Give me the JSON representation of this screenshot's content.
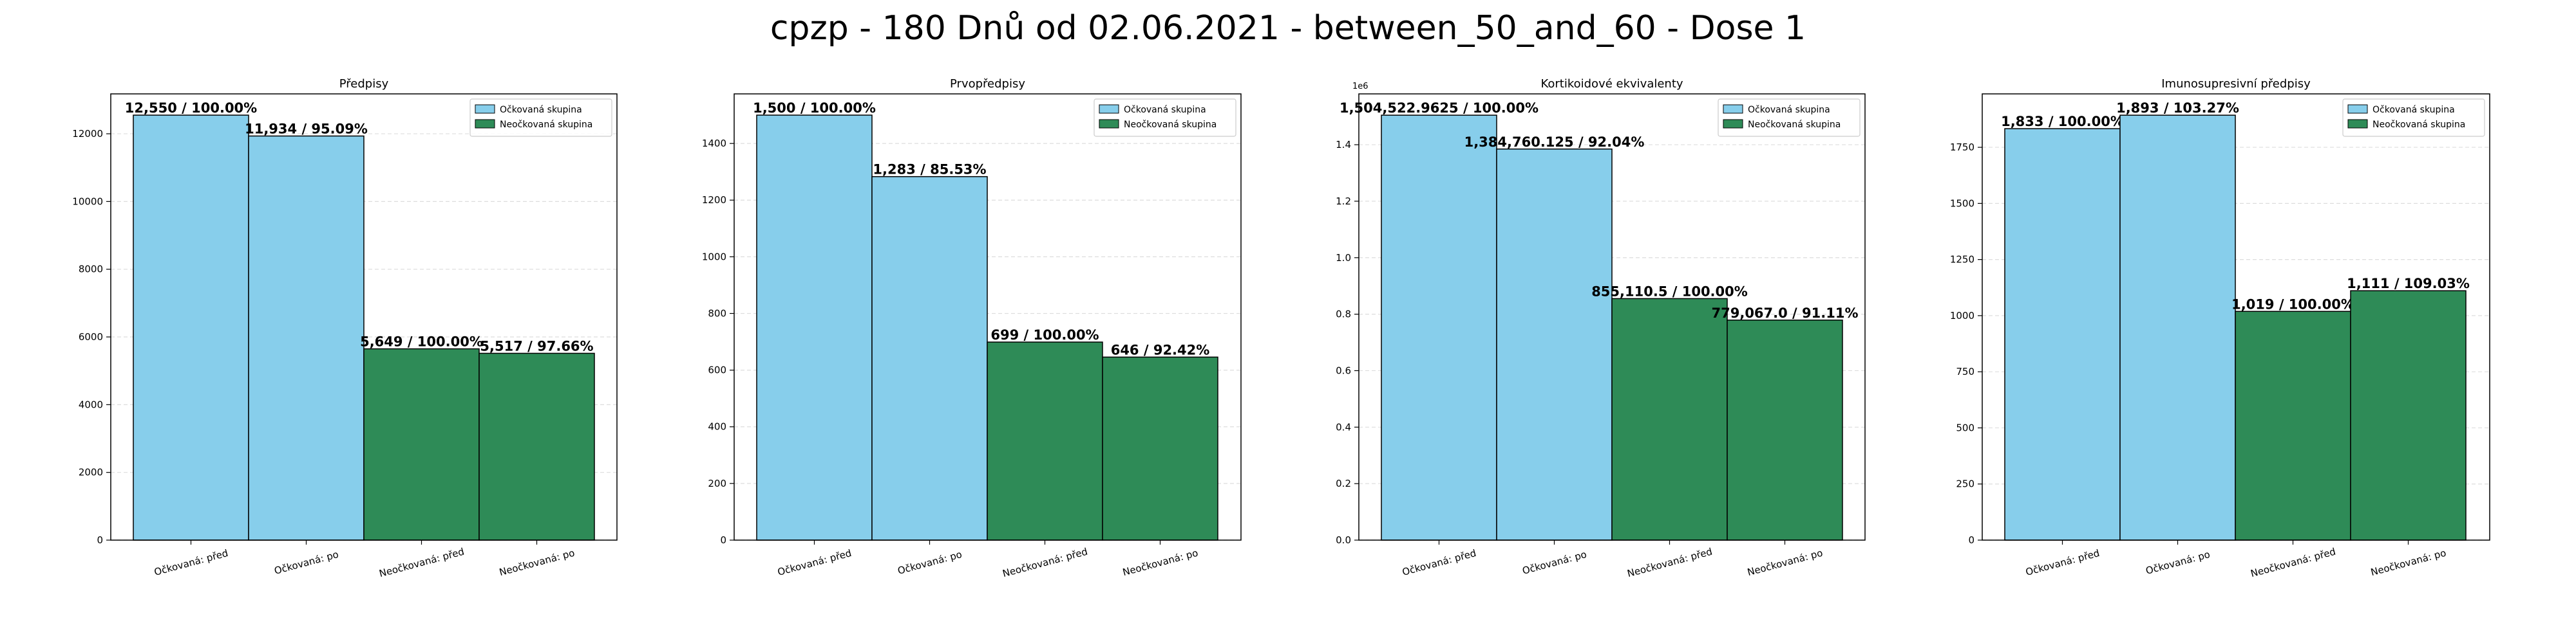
{
  "page": {
    "title": "cpzp - 180 Dnů od 02.06.2021 - between_50_and_60 - Dose 1"
  },
  "colors": {
    "vaccinated": "#87CEEB",
    "unvaccinated": "#2E8B57",
    "frame": "#000000",
    "grid": "#dddddd"
  },
  "chart_data": [
    {
      "type": "bar",
      "title": "Předpisy",
      "categories": [
        "Očkovaná: před",
        "Očkovaná: po",
        "Neočkovaná: před",
        "Neočkovaná: po"
      ],
      "values": [
        12550,
        11934,
        5649,
        5517
      ],
      "bar_labels": [
        "12,550 / 100.00%",
        "11,934 / 95.09%",
        "5,649 / 100.00%",
        "5,517 / 97.66%"
      ],
      "bar_groups": [
        "vaccinated",
        "vaccinated",
        "unvaccinated",
        "unvaccinated"
      ],
      "legend": [
        "Očkovaná skupina",
        "Neočkovaná skupina"
      ],
      "legend_position": "top-right",
      "ylim": [
        0,
        13178
      ],
      "yticks": [
        0,
        2000,
        4000,
        6000,
        8000,
        10000,
        12000
      ],
      "ytick_labels": [
        "0",
        "2000",
        "4000",
        "6000",
        "8000",
        "10000",
        "12000"
      ],
      "grid": true
    },
    {
      "type": "bar",
      "title": "Prvopředpisy",
      "categories": [
        "Očkovaná: před",
        "Očkovaná: po",
        "Neočkovaná: před",
        "Neočkovaná: po"
      ],
      "values": [
        1500,
        1283,
        699,
        646
      ],
      "bar_labels": [
        "1,500 / 100.00%",
        "1,283 / 85.53%",
        "699 / 100.00%",
        "646 / 92.42%"
      ],
      "bar_groups": [
        "vaccinated",
        "vaccinated",
        "unvaccinated",
        "unvaccinated"
      ],
      "legend": [
        "Očkovaná skupina",
        "Neočkovaná skupina"
      ],
      "legend_position": "top-right",
      "ylim": [
        0,
        1575
      ],
      "yticks": [
        0,
        200,
        400,
        600,
        800,
        1000,
        1200,
        1400
      ],
      "ytick_labels": [
        "0",
        "200",
        "400",
        "600",
        "800",
        "1000",
        "1200",
        "1400"
      ],
      "grid": true
    },
    {
      "type": "bar",
      "title": "Kortikoidové ekvivalenty",
      "categories": [
        "Očkovaná: před",
        "Očkovaná: po",
        "Neočkovaná: před",
        "Neočkovaná: po"
      ],
      "values": [
        1504522.9625,
        1384760.125,
        855110.5,
        779067.0
      ],
      "bar_labels": [
        "1,504,522.9625 / 100.00%",
        "1,384,760.125 / 92.04%",
        "855,110.5 / 100.00%",
        "779,067.0 / 91.11%"
      ],
      "bar_groups": [
        "vaccinated",
        "vaccinated",
        "unvaccinated",
        "unvaccinated"
      ],
      "legend": [
        "Očkovaná skupina",
        "Neočkovaná skupina"
      ],
      "legend_position": "top-right",
      "ylim": [
        0,
        1580000
      ],
      "yticks": [
        0,
        200000,
        400000,
        600000,
        800000,
        1000000,
        1200000,
        1400000
      ],
      "ytick_labels": [
        "0.0",
        "0.2",
        "0.4",
        "0.6",
        "0.8",
        "1.0",
        "1.2",
        "1.4"
      ],
      "offset_label": "1e6",
      "grid": true
    },
    {
      "type": "bar",
      "title": "Imunosupresivní předpisy",
      "categories": [
        "Očkovaná: před",
        "Očkovaná: po",
        "Neočkovaná: před",
        "Neočkovaná: po"
      ],
      "values": [
        1833,
        1893,
        1019,
        1111
      ],
      "bar_labels": [
        "1,833 / 100.00%",
        "1,893 / 103.27%",
        "1,019 / 100.00%",
        "1,111 / 109.03%"
      ],
      "bar_groups": [
        "vaccinated",
        "vaccinated",
        "unvaccinated",
        "unvaccinated"
      ],
      "legend": [
        "Očkovaná skupina",
        "Neočkovaná skupina"
      ],
      "legend_position": "top-right",
      "ylim": [
        0,
        1988
      ],
      "yticks": [
        0,
        250,
        500,
        750,
        1000,
        1250,
        1500,
        1750
      ],
      "ytick_labels": [
        "0",
        "250",
        "500",
        "750",
        "1000",
        "1250",
        "1500",
        "1750"
      ],
      "grid": true
    }
  ]
}
